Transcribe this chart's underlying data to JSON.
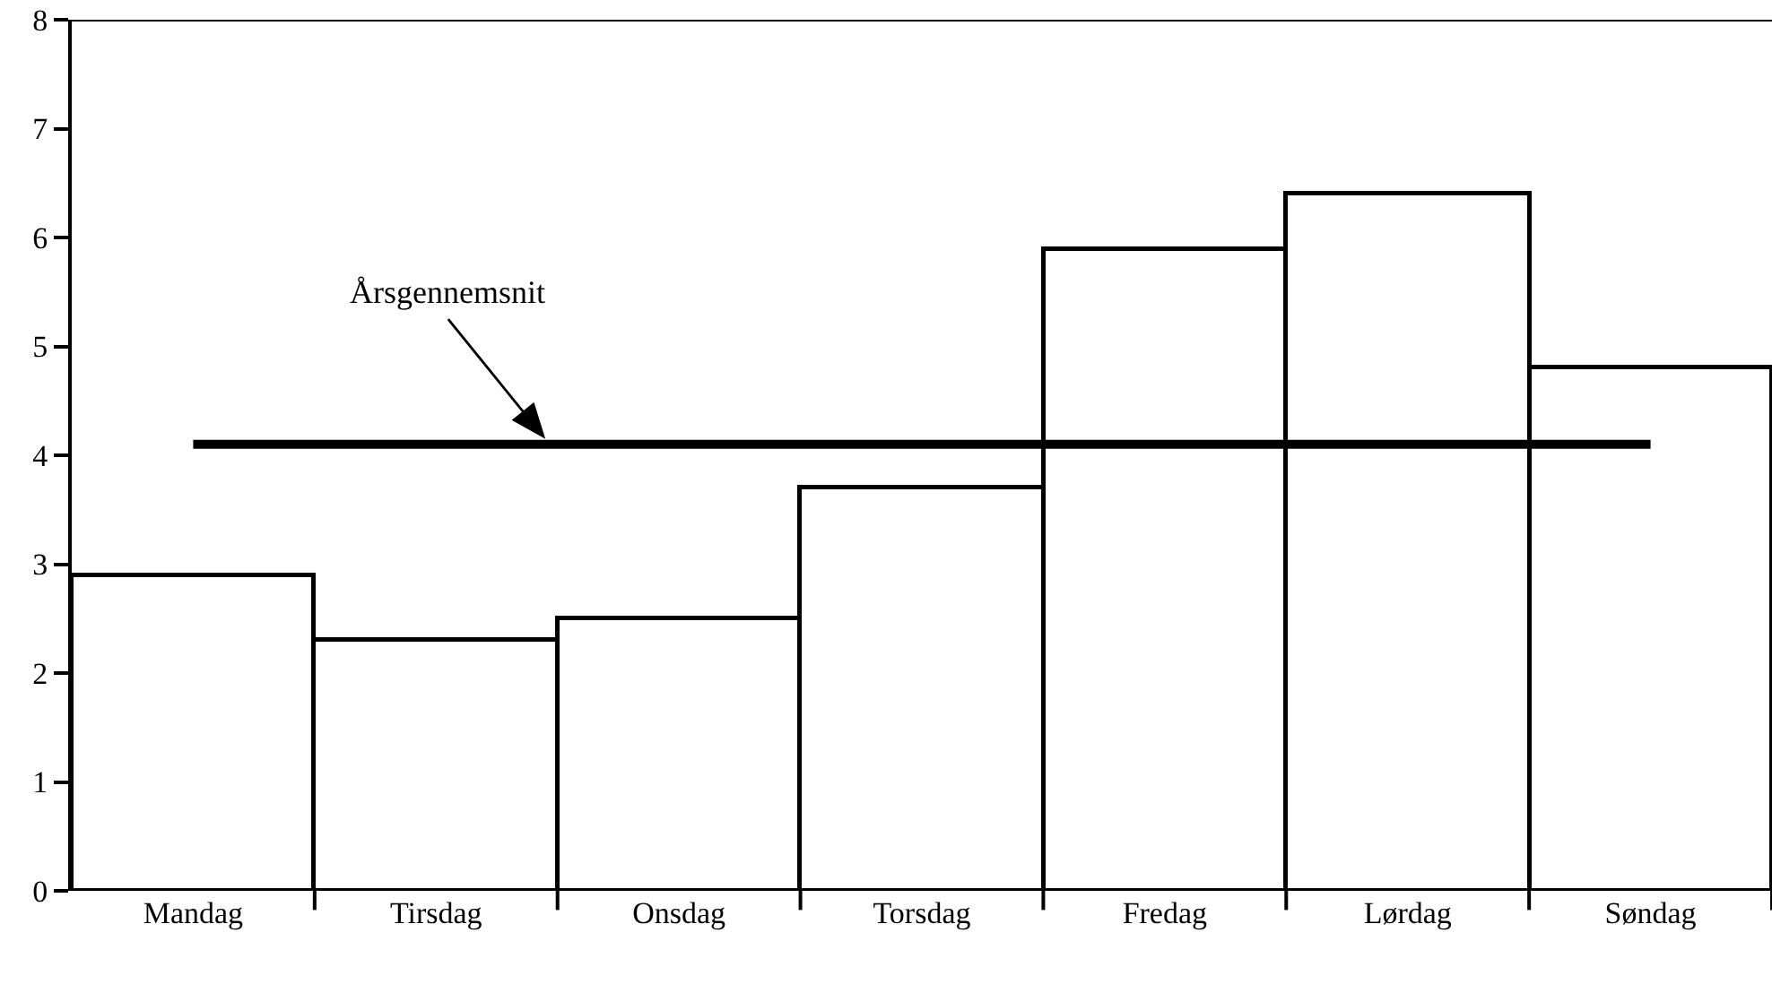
{
  "chart_data": {
    "type": "bar",
    "categories": [
      "Mandag",
      "Tirsdag",
      "Onsdag",
      "Torsdag",
      "Fredag",
      "Lørdag",
      "Søndag"
    ],
    "values": [
      2.9,
      2.3,
      2.5,
      3.7,
      5.9,
      6.4,
      4.8
    ],
    "color": "#ffffff",
    "ylim": [
      0,
      8
    ],
    "yticks": [
      0,
      1,
      2,
      3,
      4,
      5,
      6,
      7,
      8
    ],
    "grid": false,
    "ref_lines": [
      {
        "axis": "y",
        "value": 4.1,
        "label": "Årsgennemsnit",
        "color": "#000000",
        "line_style": "solid"
      }
    ]
  }
}
